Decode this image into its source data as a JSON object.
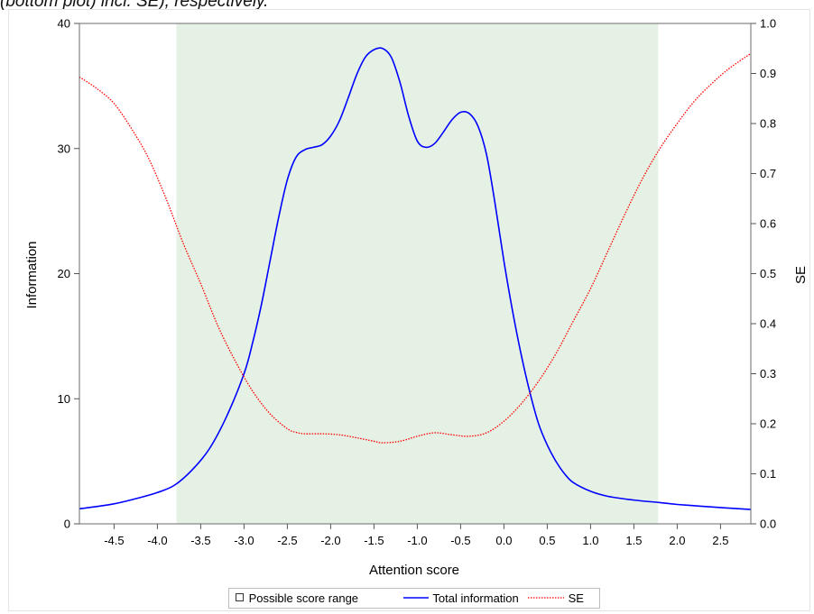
{
  "caption": "(bottom plot) incl. SE), respectively.",
  "chart_data": {
    "type": "line",
    "xlabel": "Attention score",
    "ylabel_left": "Information",
    "ylabel_right": "SE",
    "xlim": [
      -4.9,
      2.85
    ],
    "ylim_left": [
      0,
      40
    ],
    "ylim_right": [
      0.0,
      1.0
    ],
    "x_ticks": [
      -4.5,
      -4.0,
      -3.5,
      -3.0,
      -2.5,
      -2.0,
      -1.5,
      -1.0,
      -0.5,
      0.0,
      0.5,
      1.0,
      1.5,
      2.0,
      2.5
    ],
    "x_tick_labels": [
      "-4.5",
      "-4.0",
      "-3.5",
      "-3.0",
      "-2.5",
      "-2.0",
      "-1.5",
      "-1.0",
      "-0.5",
      "0.0",
      "0.5",
      "1.0",
      "1.5",
      "2.0",
      "2.5"
    ],
    "y_left_ticks": [
      0,
      10,
      20,
      30,
      40
    ],
    "y_left_tick_labels": [
      "0",
      "10",
      "20",
      "30",
      "40"
    ],
    "y_right_ticks": [
      0.0,
      0.1,
      0.2,
      0.3,
      0.4,
      0.5,
      0.6,
      0.7,
      0.8,
      0.9,
      1.0
    ],
    "y_right_tick_labels": [
      "0.0",
      "0.1",
      "0.2",
      "0.3",
      "0.4",
      "0.5",
      "0.6",
      "0.7",
      "0.8",
      "0.9",
      "1.0"
    ],
    "score_range": {
      "name": "Possible score range",
      "x_min": -3.78,
      "x_max": 1.78,
      "color": "#e5f1e4"
    },
    "series": [
      {
        "name": "Total information",
        "axis": "left",
        "color": "#0000ff",
        "style": "solid",
        "x": [
          -4.9,
          -4.5,
          -4.2,
          -4.0,
          -3.8,
          -3.6,
          -3.4,
          -3.2,
          -3.0,
          -2.9,
          -2.8,
          -2.7,
          -2.6,
          -2.5,
          -2.4,
          -2.3,
          -2.2,
          -2.1,
          -2.0,
          -1.9,
          -1.8,
          -1.7,
          -1.6,
          -1.5,
          -1.4,
          -1.3,
          -1.2,
          -1.1,
          -1.0,
          -0.9,
          -0.8,
          -0.7,
          -0.6,
          -0.5,
          -0.4,
          -0.3,
          -0.2,
          -0.1,
          0.0,
          0.1,
          0.2,
          0.3,
          0.4,
          0.5,
          0.6,
          0.7,
          0.8,
          1.0,
          1.2,
          1.5,
          1.8,
          2.0,
          2.5,
          2.85
        ],
        "y": [
          1.2,
          1.6,
          2.1,
          2.5,
          3.1,
          4.3,
          6.0,
          8.6,
          12.0,
          14.5,
          17.5,
          21.0,
          24.5,
          27.5,
          29.3,
          29.9,
          30.1,
          30.3,
          31.0,
          32.2,
          34.0,
          35.9,
          37.3,
          37.9,
          38.0,
          37.3,
          35.3,
          32.6,
          30.6,
          30.1,
          30.4,
          31.3,
          32.3,
          32.9,
          32.8,
          31.8,
          29.5,
          25.5,
          21.0,
          17.0,
          13.5,
          10.5,
          8.0,
          6.3,
          5.0,
          4.0,
          3.3,
          2.6,
          2.2,
          1.9,
          1.7,
          1.55,
          1.3,
          1.15
        ]
      },
      {
        "name": "SE",
        "axis": "right",
        "color": "#ff0000",
        "style": "dotted",
        "x": [
          -4.9,
          -4.7,
          -4.5,
          -4.3,
          -4.1,
          -3.9,
          -3.7,
          -3.5,
          -3.3,
          -3.1,
          -2.9,
          -2.7,
          -2.5,
          -2.4,
          -2.3,
          -2.1,
          -1.9,
          -1.7,
          -1.5,
          -1.4,
          -1.2,
          -1.0,
          -0.8,
          -0.6,
          -0.4,
          -0.2,
          0.0,
          0.2,
          0.4,
          0.6,
          0.8,
          1.0,
          1.2,
          1.4,
          1.6,
          1.8,
          2.0,
          2.2,
          2.4,
          2.6,
          2.85
        ],
        "y": [
          0.893,
          0.87,
          0.84,
          0.79,
          0.73,
          0.65,
          0.56,
          0.48,
          0.395,
          0.325,
          0.265,
          0.22,
          0.19,
          0.183,
          0.18,
          0.18,
          0.178,
          0.172,
          0.165,
          0.162,
          0.165,
          0.175,
          0.182,
          0.178,
          0.175,
          0.182,
          0.205,
          0.24,
          0.285,
          0.34,
          0.405,
          0.47,
          0.545,
          0.62,
          0.69,
          0.75,
          0.8,
          0.845,
          0.88,
          0.91,
          0.94
        ]
      }
    ],
    "legend": {
      "position": "bottom",
      "entries": [
        "Possible score range",
        "Total information",
        "SE"
      ]
    }
  }
}
